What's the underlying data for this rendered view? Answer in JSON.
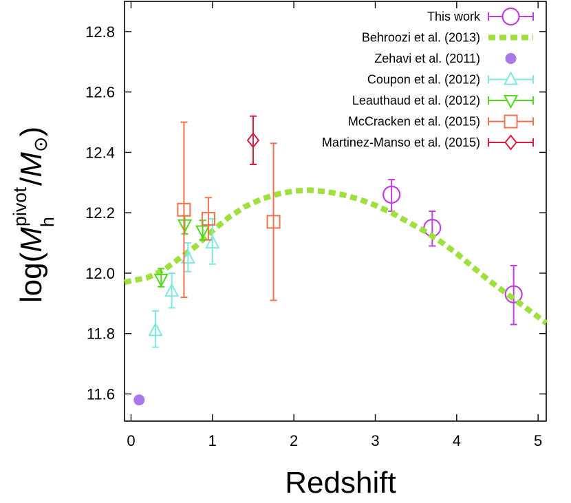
{
  "chart_data": {
    "type": "scatter",
    "xlabel": "Redshift",
    "ylabel": {
      "prefix": "log(",
      "M": "M",
      "sub": "h",
      "sup": "pivot",
      "slash": "/",
      "M2": "M",
      "sun": "⊙",
      "suffix": ")"
    },
    "xlim": [
      -0.08,
      5.1
    ],
    "ylim": [
      11.51,
      12.9
    ],
    "x_ticks": [
      0,
      1,
      2,
      3,
      4,
      5
    ],
    "x_tick_labels": [
      "0",
      "1",
      "2",
      "3",
      "4",
      "5"
    ],
    "y_ticks": [
      11.6,
      11.8,
      12.0,
      12.2,
      12.4,
      12.6,
      12.8
    ],
    "y_tick_labels": [
      "11.6",
      "11.8",
      "12.0",
      "12.2",
      "12.4",
      "12.6",
      "12.8"
    ],
    "legend_position": "top-right",
    "series": [
      {
        "name": "This work",
        "marker": "circle-open-large",
        "color": "#bf40e0",
        "points": [
          {
            "x": 3.2,
            "y": 12.26,
            "ylow": 12.205,
            "yhigh": 12.31
          },
          {
            "x": 3.7,
            "y": 12.15,
            "ylow": 12.09,
            "yhigh": 12.205
          },
          {
            "x": 4.7,
            "y": 11.93,
            "ylow": 11.83,
            "yhigh": 12.025
          }
        ]
      },
      {
        "name": "Behroozi et al. (2013)",
        "marker": "dashed-line",
        "color": "#9de040",
        "points": [
          {
            "x": -0.08,
            "y": 11.97
          },
          {
            "x": 0.2,
            "y": 11.985
          },
          {
            "x": 0.4,
            "y": 12.01
          },
          {
            "x": 0.6,
            "y": 12.05
          },
          {
            "x": 0.8,
            "y": 12.09
          },
          {
            "x": 1.0,
            "y": 12.14
          },
          {
            "x": 1.2,
            "y": 12.185
          },
          {
            "x": 1.4,
            "y": 12.22
          },
          {
            "x": 1.6,
            "y": 12.245
          },
          {
            "x": 1.8,
            "y": 12.262
          },
          {
            "x": 2.0,
            "y": 12.272
          },
          {
            "x": 2.2,
            "y": 12.275
          },
          {
            "x": 2.4,
            "y": 12.27
          },
          {
            "x": 2.6,
            "y": 12.26
          },
          {
            "x": 2.8,
            "y": 12.245
          },
          {
            "x": 3.0,
            "y": 12.225
          },
          {
            "x": 3.2,
            "y": 12.2
          },
          {
            "x": 3.4,
            "y": 12.17
          },
          {
            "x": 3.6,
            "y": 12.14
          },
          {
            "x": 3.8,
            "y": 12.105
          },
          {
            "x": 4.0,
            "y": 12.065
          },
          {
            "x": 4.2,
            "y": 12.02
          },
          {
            "x": 4.4,
            "y": 11.975
          },
          {
            "x": 4.6,
            "y": 11.935
          },
          {
            "x": 4.8,
            "y": 11.895
          },
          {
            "x": 5.0,
            "y": 11.855
          },
          {
            "x": 5.1,
            "y": 11.835
          }
        ]
      },
      {
        "name": "Zehavi et al. (2011)",
        "marker": "circle-filled",
        "color": "#a877e8",
        "points": [
          {
            "x": 0.1,
            "y": 11.58
          }
        ]
      },
      {
        "name": "Coupon et al. (2012)",
        "marker": "triangle-up-open",
        "color": "#7fe8e0",
        "points": [
          {
            "x": 0.3,
            "y": 11.81,
            "ylow": 11.755,
            "yhigh": 11.875
          },
          {
            "x": 0.5,
            "y": 11.94,
            "ylow": 11.885,
            "yhigh": 12.0
          },
          {
            "x": 0.7,
            "y": 12.05,
            "ylow": 12.005,
            "yhigh": 12.1
          },
          {
            "x": 1.0,
            "y": 12.1,
            "ylow": 12.03,
            "yhigh": 12.18
          }
        ]
      },
      {
        "name": "Leauthaud et al. (2012)",
        "marker": "triangle-down-open",
        "color": "#55d61c",
        "points": [
          {
            "x": 0.37,
            "y": 11.98,
            "ylow": 11.955,
            "yhigh": 12.015
          },
          {
            "x": 0.66,
            "y": 12.16,
            "ylow": 12.13,
            "yhigh": 12.19
          },
          {
            "x": 0.88,
            "y": 12.14,
            "ylow": 12.11,
            "yhigh": 12.175
          }
        ]
      },
      {
        "name": "McCracken et al. (2015)",
        "marker": "square-open",
        "color": "#f0734f",
        "points": [
          {
            "x": 0.65,
            "y": 12.21,
            "ylow": 11.92,
            "yhigh": 12.5
          },
          {
            "x": 0.95,
            "y": 12.18,
            "ylow": 12.11,
            "yhigh": 12.25
          },
          {
            "x": 1.75,
            "y": 12.17,
            "ylow": 11.91,
            "yhigh": 12.43
          }
        ]
      },
      {
        "name": "Martinez-Manso et al. (2015)",
        "marker": "diamond-open",
        "color": "#d81e3c",
        "points": [
          {
            "x": 1.5,
            "y": 12.44,
            "ylow": 12.36,
            "yhigh": 12.52
          }
        ]
      }
    ]
  }
}
